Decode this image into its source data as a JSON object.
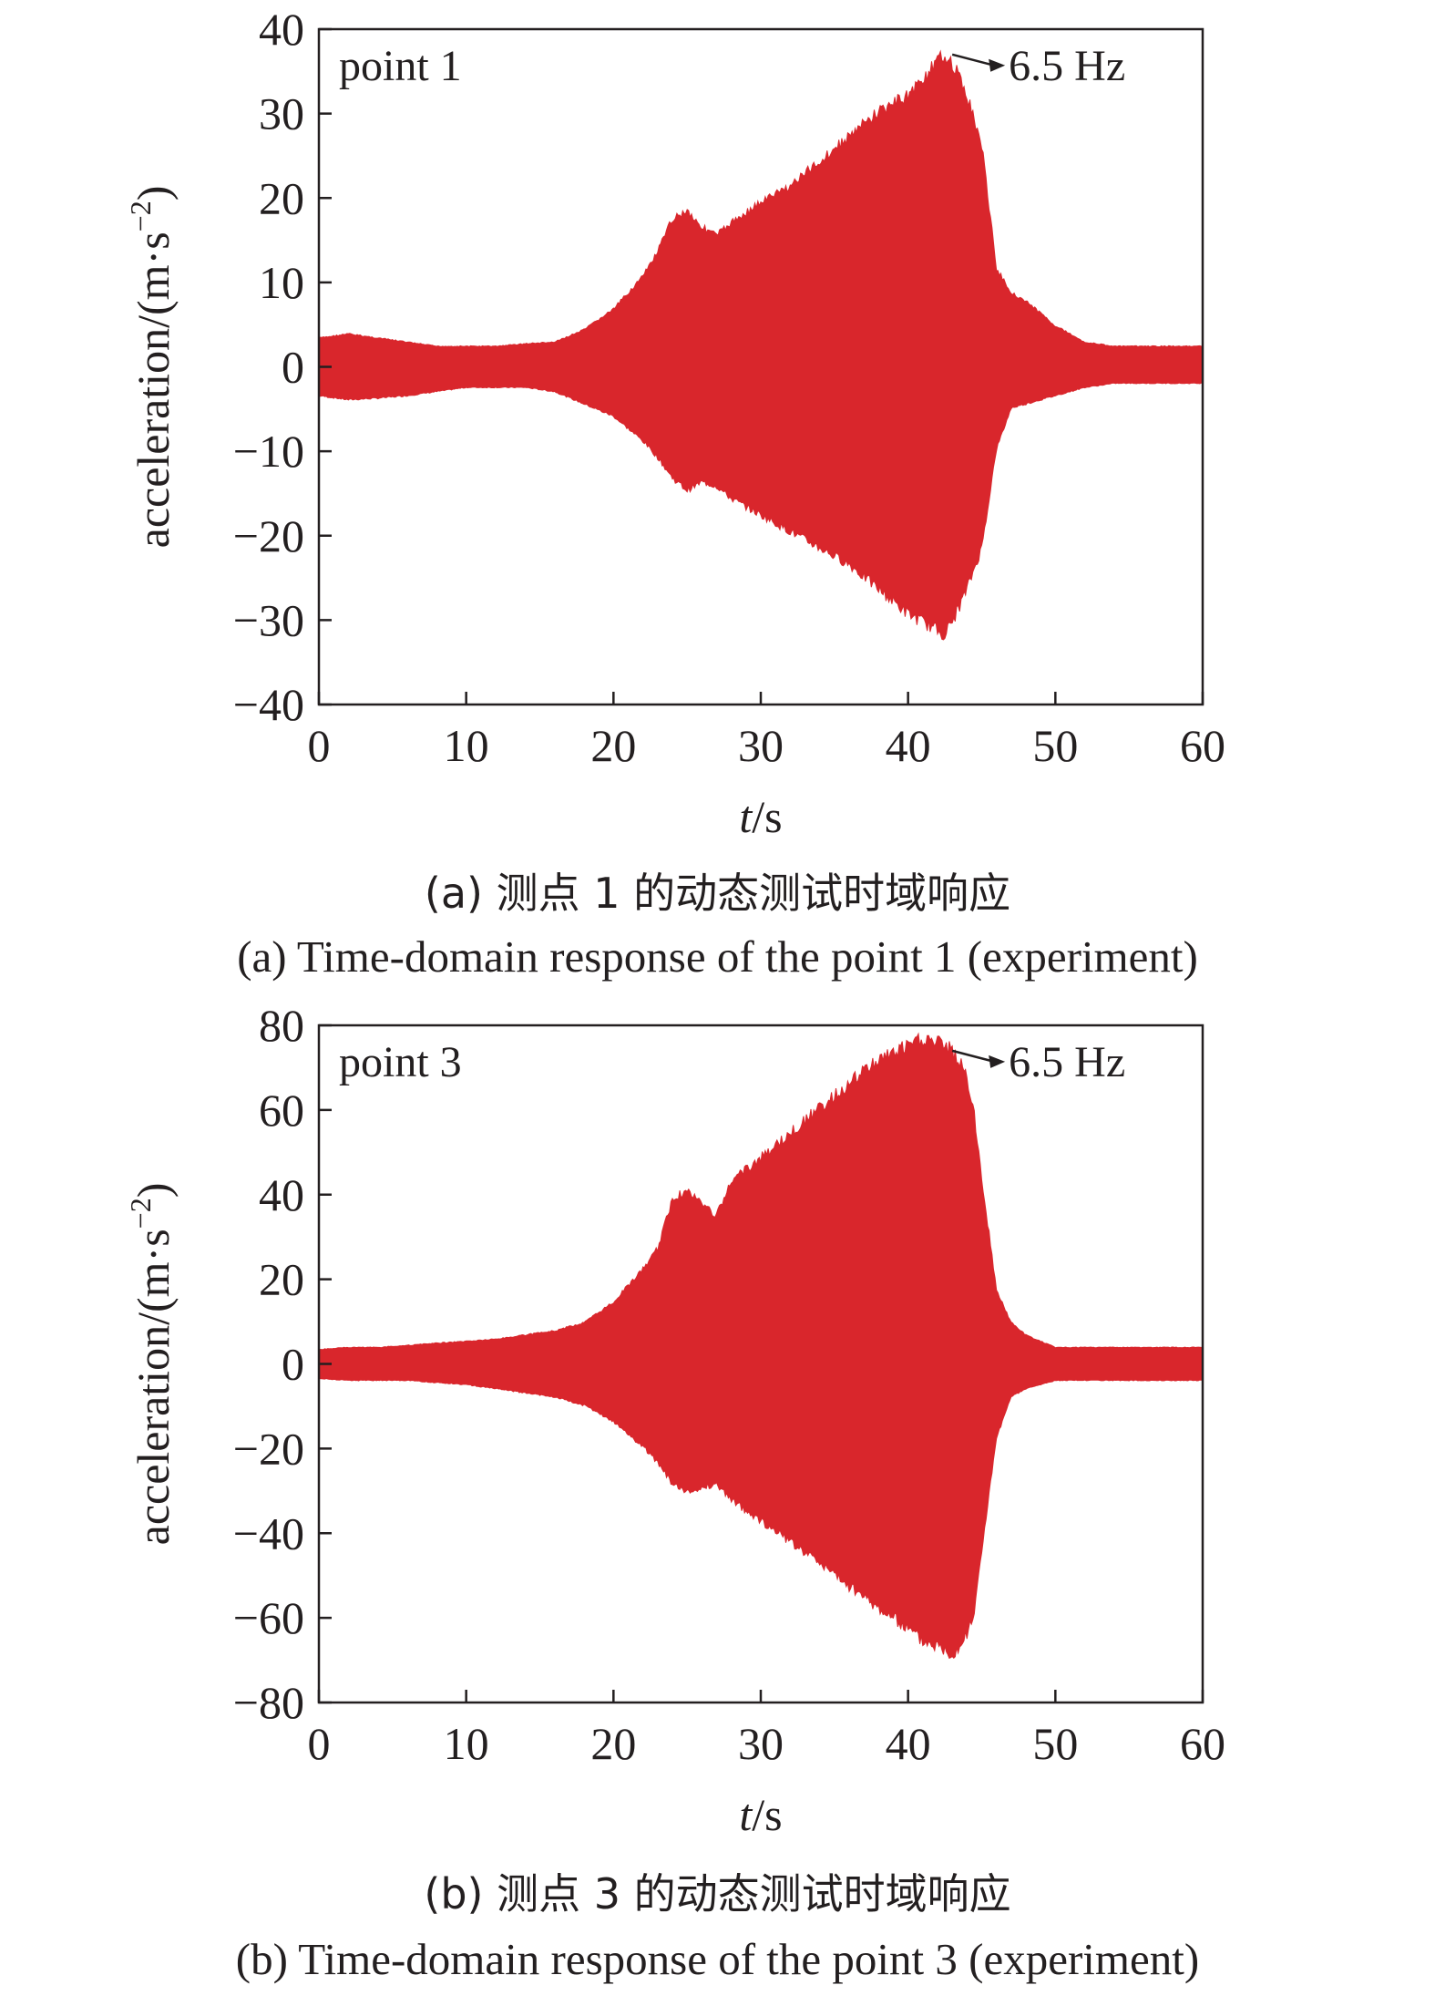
{
  "chart_data": [
    {
      "type": "area",
      "panel_label": "point 1",
      "annotation": "6.5 Hz",
      "xlabel_italic": "t",
      "xlabel_unit": "/s",
      "ylabel": "acceleration/(m·s",
      "ylabel_exp": "−2",
      "ylabel_close": ")",
      "xlim": [
        0,
        60
      ],
      "ylim": [
        -40,
        40
      ],
      "xticks": [
        0,
        10,
        20,
        30,
        40,
        50,
        60
      ],
      "xtick_labels": [
        "0",
        "10",
        "20",
        "30",
        "40",
        "50",
        "60"
      ],
      "yticks": [
        40,
        30,
        20,
        10,
        0,
        -10,
        -20,
        -30,
        -40
      ],
      "ytick_labels": [
        "40",
        "30",
        "20",
        "10",
        "0",
        "−10",
        "−20",
        "−30",
        "−40"
      ],
      "color": "#d9262c",
      "annotation_target": {
        "x": 43,
        "y": 37
      },
      "envelope": {
        "x": [
          0,
          2,
          4,
          6,
          8,
          10,
          12,
          14,
          16,
          18,
          20,
          22,
          23,
          24,
          25,
          26,
          27,
          28,
          30,
          32,
          34,
          36,
          38,
          40,
          41,
          42,
          42.5,
          43,
          44,
          45,
          46,
          47,
          48,
          50,
          52,
          54,
          56,
          58,
          60
        ],
        "upper": [
          3.5,
          4,
          3.5,
          3,
          2.5,
          2.5,
          2.5,
          2.8,
          3,
          4.5,
          7,
          11,
          14,
          18,
          19,
          17,
          16,
          17.5,
          20,
          22,
          25,
          28,
          31,
          33,
          35,
          37,
          38,
          37,
          33,
          27,
          12,
          9,
          8,
          5,
          3,
          2.5,
          2.5,
          2.5,
          2.5
        ],
        "lower": [
          -3.5,
          -4,
          -3.8,
          -3.5,
          -3,
          -2.5,
          -2.5,
          -2.5,
          -3,
          -4.5,
          -6,
          -9,
          -11,
          -13.5,
          -15,
          -14,
          -14.5,
          -16,
          -18,
          -20,
          -22,
          -24,
          -27,
          -30,
          -31,
          -32,
          -32.5,
          -31,
          -27,
          -22,
          -10,
          -5,
          -4.5,
          -3.5,
          -2.5,
          -2,
          -2,
          -2,
          -2
        ]
      }
    },
    {
      "type": "area",
      "panel_label": "point 3",
      "annotation": "6.5 Hz",
      "xlabel_italic": "t",
      "xlabel_unit": "/s",
      "ylabel": "acceleration/(m·s",
      "ylabel_exp": "−2",
      "ylabel_close": ")",
      "xlim": [
        0,
        60
      ],
      "ylim": [
        -80,
        80
      ],
      "xticks": [
        0,
        10,
        20,
        30,
        40,
        50,
        60
      ],
      "xtick_labels": [
        "0",
        "10",
        "20",
        "30",
        "40",
        "50",
        "60"
      ],
      "yticks": [
        80,
        60,
        40,
        20,
        0,
        -20,
        -40,
        -60,
        -80
      ],
      "ytick_labels": [
        "80",
        "60",
        "40",
        "20",
        "0",
        "−20",
        "−40",
        "−60",
        "−80"
      ],
      "color": "#d9262c",
      "annotation_target": {
        "x": 43,
        "y": 74
      },
      "envelope": {
        "x": [
          0,
          2,
          4,
          6,
          8,
          10,
          12,
          14,
          16,
          18,
          20,
          22,
          23,
          24,
          25,
          26,
          27,
          28,
          30,
          32,
          34,
          36,
          38,
          40,
          41,
          42,
          43,
          44,
          44.5,
          45,
          46,
          47,
          48,
          50,
          52,
          54,
          56,
          58,
          60
        ],
        "upper": [
          3.5,
          4,
          4,
          4.5,
          5,
          5.5,
          6,
          7,
          8,
          10,
          15,
          23,
          28,
          40,
          42,
          39,
          36,
          44,
          50,
          56,
          62,
          68,
          74,
          77,
          79,
          78,
          76,
          70,
          60,
          45,
          18,
          10,
          7,
          4,
          4,
          4,
          4,
          4,
          4
        ],
        "lower": [
          -3.5,
          -4,
          -4,
          -4,
          -4.5,
          -5,
          -6,
          -7,
          -8,
          -10,
          -14,
          -20,
          -24,
          -29,
          -31,
          -30,
          -29,
          -33,
          -38,
          -43,
          -48,
          -54,
          -59,
          -64,
          -67,
          -68,
          -70,
          -66,
          -60,
          -45,
          -18,
          -8,
          -6,
          -4,
          -4,
          -4,
          -4,
          -4,
          -4
        ]
      }
    }
  ],
  "captions": [
    {
      "zh": "(a) 测点 1 的动态测试时域响应",
      "en": "(a) Time-domain response of the point 1 (experiment)"
    },
    {
      "zh": "(b) 测点 3 的动态测试时域响应",
      "en": "(b) Time-domain response of the point 3 (experiment)"
    }
  ]
}
